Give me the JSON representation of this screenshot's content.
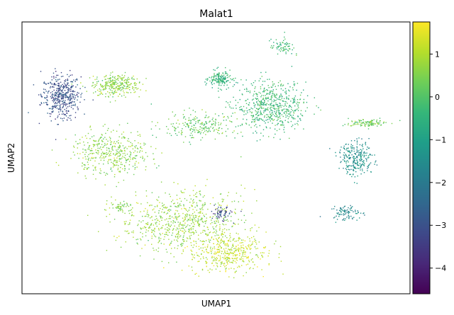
{
  "chart_data": {
    "type": "scatter",
    "title": "Malat1",
    "xlabel": "UMAP1",
    "ylabel": "UMAP2",
    "grid": false,
    "legend": "none",
    "colorbar": {
      "placement": "right",
      "colormap": "viridis",
      "vmin": -4.6,
      "vmax": 1.75,
      "ticks": [
        1,
        0,
        -1,
        -2,
        -3,
        -4
      ],
      "tick_labels": [
        "1",
        "0",
        "−1",
        "−2",
        "−3",
        "−4"
      ],
      "stops": [
        "#440154",
        "#482878",
        "#3e4989",
        "#31688e",
        "#26828e",
        "#1f9e89",
        "#35b779",
        "#6ece58",
        "#b5de2b",
        "#fde725"
      ]
    },
    "xlim": [
      0,
      100
    ],
    "ylim": [
      0,
      100
    ],
    "clusters": [
      {
        "cx": 10,
        "cy": 73,
        "rx": 5,
        "ry": 8,
        "value": -3.0,
        "n": 450
      },
      {
        "cx": 24,
        "cy": 77,
        "rx": 6,
        "ry": 4,
        "value": 0.6,
        "n": 300
      },
      {
        "cx": 51,
        "cy": 79,
        "rx": 3,
        "ry": 3,
        "value": -0.5,
        "n": 160
      },
      {
        "cx": 64,
        "cy": 69,
        "rx": 9,
        "ry": 9,
        "value": -0.3,
        "n": 600
      },
      {
        "cx": 67,
        "cy": 91,
        "rx": 3,
        "ry": 3,
        "value": -0.3,
        "n": 70
      },
      {
        "cx": 23,
        "cy": 52,
        "rx": 10,
        "ry": 8,
        "value": 0.6,
        "n": 420
      },
      {
        "cx": 41,
        "cy": 27,
        "rx": 16,
        "ry": 11,
        "value": 0.7,
        "n": 720
      },
      {
        "cx": 53,
        "cy": 15,
        "rx": 10,
        "ry": 7,
        "value": 1.2,
        "n": 420
      },
      {
        "cx": 51,
        "cy": 30,
        "rx": 3,
        "ry": 3,
        "value": -3.2,
        "n": 60
      },
      {
        "cx": 86,
        "cy": 50,
        "rx": 4.5,
        "ry": 6,
        "value": -1.4,
        "n": 260
      },
      {
        "cx": 83,
        "cy": 30,
        "rx": 4,
        "ry": 3,
        "value": -1.6,
        "n": 90
      },
      {
        "cx": 89,
        "cy": 63,
        "rx": 5,
        "ry": 1.5,
        "value": 0.3,
        "n": 110
      },
      {
        "cx": 45,
        "cy": 62,
        "rx": 10,
        "ry": 5,
        "value": 0.2,
        "n": 220
      },
      {
        "cx": 25,
        "cy": 32,
        "rx": 2,
        "ry": 1.5,
        "value": 0.5,
        "n": 40
      }
    ]
  }
}
